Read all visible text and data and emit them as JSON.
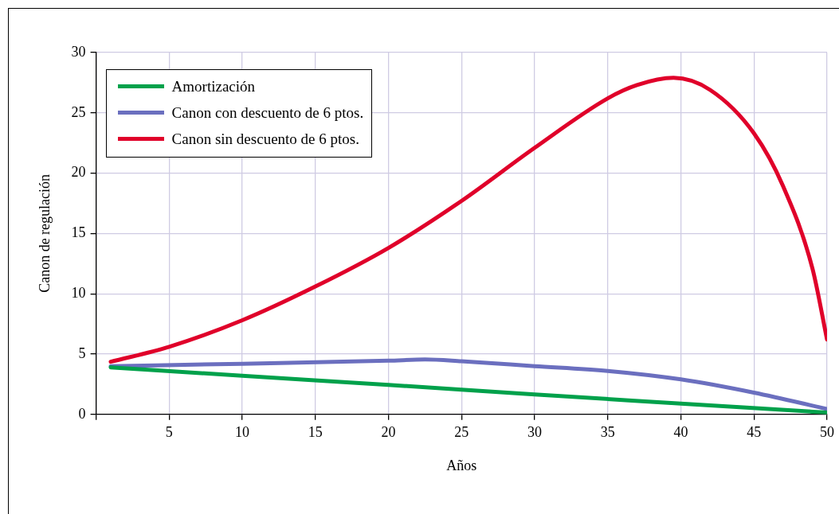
{
  "chart_data": {
    "type": "line",
    "xlabel": "Años",
    "ylabel": "Canon de regulación",
    "xlim": [
      0,
      50
    ],
    "xticks": [
      {
        "value": 0,
        "label": null
      },
      5,
      10,
      15,
      20,
      25,
      30,
      35,
      40,
      45,
      50
    ],
    "ylim": [
      0,
      30
    ],
    "yticks": [
      0,
      5,
      10,
      15,
      20,
      25,
      30
    ],
    "grid": true,
    "legend": "top left",
    "marker": "none",
    "line_style": "solid",
    "series": [
      {
        "name": "Amortización",
        "color": "#00a14b",
        "x": [
          1,
          10,
          20,
          30,
          40,
          50
        ],
        "values": [
          3.9,
          3.2,
          2.45,
          1.65,
          0.9,
          0.15
        ]
      },
      {
        "name": "Canon con descuento de 6 ptos.",
        "color": "#6b6fbf",
        "x": [
          1,
          10,
          20,
          22.5,
          25,
          30,
          35,
          40,
          45,
          50
        ],
        "values": [
          4.0,
          4.2,
          4.45,
          4.55,
          4.4,
          4.0,
          3.6,
          2.9,
          1.8,
          0.45
        ]
      },
      {
        "name": "Canon sin descuento de 6 ptos.",
        "color": "#e0002a",
        "x": [
          1,
          5,
          10,
          15,
          20,
          25,
          30,
          35,
          37,
          39.5,
          42,
          45,
          47,
          49,
          50
        ],
        "values": [
          4.36,
          5.6,
          7.8,
          10.6,
          13.8,
          17.7,
          22.1,
          26.2,
          27.3,
          27.9,
          26.9,
          23.3,
          18.9,
          12.1,
          6.2
        ]
      }
    ]
  }
}
